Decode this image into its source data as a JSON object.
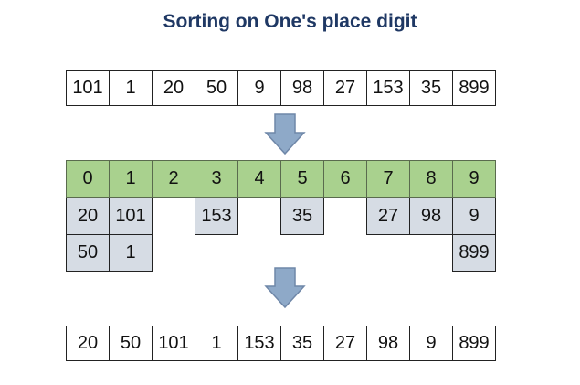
{
  "title": "Sorting on One's place digit",
  "input": [
    "101",
    "1",
    "20",
    "50",
    "9",
    "98",
    "27",
    "153",
    "35",
    "899"
  ],
  "digits": [
    "0",
    "1",
    "2",
    "3",
    "4",
    "5",
    "6",
    "7",
    "8",
    "9"
  ],
  "buckets": [
    [
      "20",
      "50"
    ],
    [
      "101",
      "1"
    ],
    [],
    [
      "153"
    ],
    [],
    [
      "35"
    ],
    [],
    [
      "27"
    ],
    [
      "98"
    ],
    [
      "9",
      "899"
    ]
  ],
  "output": [
    "20",
    "50",
    "101",
    "1",
    "153",
    "35",
    "27",
    "98",
    "9",
    "899"
  ],
  "colors": {
    "title": "#1f3864",
    "digit_row": "#a9d18e",
    "bucket": "#d6dce4",
    "arrow": "#8ea9c8"
  },
  "icons": [
    "arrow-down-icon",
    "arrow-down-icon"
  ]
}
